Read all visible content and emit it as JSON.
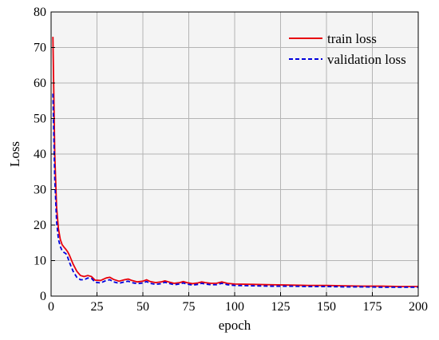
{
  "chart_data": {
    "type": "line",
    "title": "",
    "xlabel": "epoch",
    "ylabel": "Loss",
    "xlim": [
      0,
      200
    ],
    "ylim": [
      0,
      80
    ],
    "xticks": [
      0,
      25,
      50,
      75,
      100,
      125,
      150,
      175,
      200
    ],
    "yticks": [
      0,
      10,
      20,
      30,
      40,
      50,
      60,
      70,
      80
    ],
    "grid": true,
    "legend_position": "top-right",
    "series": [
      {
        "name": "train loss",
        "color": "#e8000b",
        "dash": "solid",
        "x": [
          1,
          2,
          3,
          4,
          5,
          6,
          7,
          8,
          9,
          10,
          12,
          14,
          16,
          18,
          20,
          22,
          24,
          27,
          30,
          32,
          34,
          37,
          40,
          42,
          44,
          47,
          50,
          52,
          54,
          57,
          60,
          62,
          64,
          67,
          70,
          72,
          74,
          77,
          80,
          82,
          84,
          87,
          90,
          93,
          96,
          100,
          110,
          120,
          130,
          140,
          150,
          160,
          170,
          180,
          190,
          200
        ],
        "y": [
          73,
          40,
          25,
          19,
          16,
          14.5,
          13.8,
          13.2,
          12.5,
          11.5,
          9,
          7,
          5.8,
          5.5,
          5.8,
          5.5,
          4.5,
          4.4,
          5.1,
          5.3,
          4.7,
          4.2,
          4.6,
          4.8,
          4.4,
          4.0,
          4.2,
          4.6,
          4.1,
          3.8,
          4.0,
          4.3,
          4.0,
          3.6,
          3.8,
          4.1,
          3.8,
          3.5,
          3.7,
          4.0,
          3.8,
          3.6,
          3.6,
          4.0,
          3.6,
          3.4,
          3.3,
          3.2,
          3.1,
          3.0,
          3.0,
          2.9,
          2.8,
          2.8,
          2.7,
          2.7
        ]
      },
      {
        "name": "validation loss",
        "color": "#0000dd",
        "dash": "dashed",
        "x": [
          1,
          2,
          3,
          4,
          5,
          6,
          7,
          8,
          9,
          10,
          12,
          14,
          16,
          18,
          20,
          22,
          24,
          27,
          30,
          32,
          34,
          37,
          40,
          42,
          44,
          47,
          50,
          52,
          54,
          57,
          60,
          62,
          64,
          67,
          70,
          72,
          74,
          77,
          80,
          82,
          84,
          87,
          90,
          93,
          96,
          100,
          110,
          120,
          130,
          140,
          150,
          160,
          170,
          180,
          190,
          200
        ],
        "y": [
          57,
          33,
          21,
          16,
          14,
          12.8,
          12.3,
          12.0,
          11.0,
          9.5,
          7.0,
          5.3,
          4.6,
          4.6,
          5.1,
          5.0,
          3.9,
          3.7,
          4.4,
          4.6,
          4.0,
          3.6,
          4.0,
          4.2,
          3.8,
          3.5,
          3.7,
          4.1,
          3.6,
          3.3,
          3.5,
          3.9,
          3.6,
          3.2,
          3.4,
          3.7,
          3.4,
          3.1,
          3.3,
          3.6,
          3.4,
          3.2,
          3.2,
          3.6,
          3.2,
          3.0,
          2.9,
          2.8,
          2.8,
          2.7,
          2.7,
          2.6,
          2.6,
          2.5,
          2.5,
          2.5
        ]
      }
    ]
  }
}
